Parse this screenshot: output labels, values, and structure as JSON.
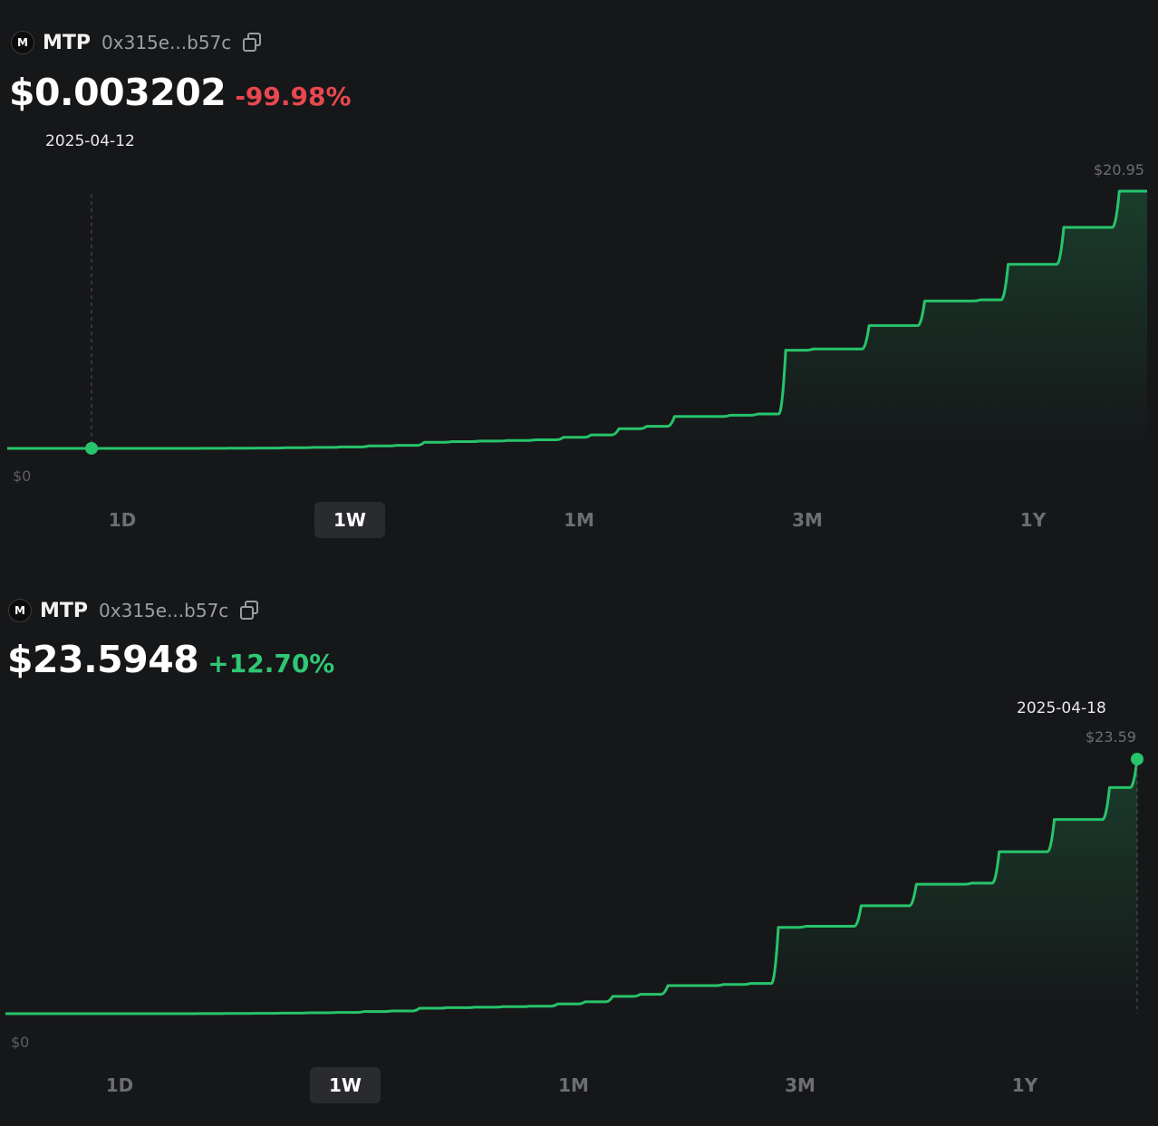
{
  "colors": {
    "background": "#161719",
    "line": "#27c46b",
    "negative": "#e8474f",
    "positive": "#2fc674"
  },
  "panels": [
    {
      "token_logo_letter": "M",
      "symbol": "MTP",
      "address": "0x315e...b57c",
      "price": "$0.003202",
      "change": "-99.98%",
      "change_direction": "negative",
      "hover_date": "2025-04-12",
      "max_label": "$20.95",
      "min_label": "$0",
      "ranges": [
        "1D",
        "1W",
        "1M",
        "3M",
        "1Y"
      ],
      "active_range": "1W"
    },
    {
      "token_logo_letter": "M",
      "symbol": "MTP",
      "address": "0x315e...b57c",
      "price": "$23.5948",
      "change": "+12.70%",
      "change_direction": "positive",
      "hover_date": "2025-04-18",
      "max_label": "$23.59",
      "min_label": "$0",
      "ranges": [
        "1D",
        "1W",
        "1M",
        "3M",
        "1Y"
      ],
      "active_range": "1W"
    }
  ],
  "chart_data": [
    {
      "type": "line",
      "y_min_label": "$0",
      "y_max_label": "$20.95",
      "ylim": [
        0,
        20.95
      ],
      "hover_point": {
        "date": "2025-04-12",
        "value": 0.003202
      },
      "values": [
        0.003,
        0.003,
        0.003,
        0.003,
        0.003,
        0.003,
        0.003,
        0.01,
        0.02,
        0.03,
        0.05,
        0.08,
        0.12,
        0.2,
        0.25,
        0.5,
        0.55,
        0.6,
        0.65,
        0.7,
        0.9,
        1.1,
        1.6,
        1.8,
        2.6,
        2.6,
        2.7,
        2.8,
        8.0,
        8.1,
        8.1,
        10.0,
        10.0,
        12.0,
        12.0,
        12.1,
        15.0,
        15.0,
        18.0,
        18.0,
        20.95,
        20.95
      ]
    },
    {
      "type": "line",
      "y_min_label": "$0",
      "y_max_label": "$23.59",
      "ylim": [
        0,
        23.59
      ],
      "hover_point": {
        "date": "2025-04-18",
        "value": 23.5948
      },
      "values": [
        0.003,
        0.003,
        0.003,
        0.003,
        0.003,
        0.003,
        0.003,
        0.01,
        0.02,
        0.03,
        0.05,
        0.08,
        0.12,
        0.2,
        0.25,
        0.5,
        0.55,
        0.6,
        0.65,
        0.7,
        0.9,
        1.1,
        1.6,
        1.8,
        2.6,
        2.6,
        2.7,
        2.8,
        8.0,
        8.1,
        8.1,
        10.0,
        10.0,
        12.0,
        12.0,
        12.1,
        15.0,
        15.0,
        18.0,
        18.0,
        20.95,
        23.5948
      ]
    }
  ]
}
